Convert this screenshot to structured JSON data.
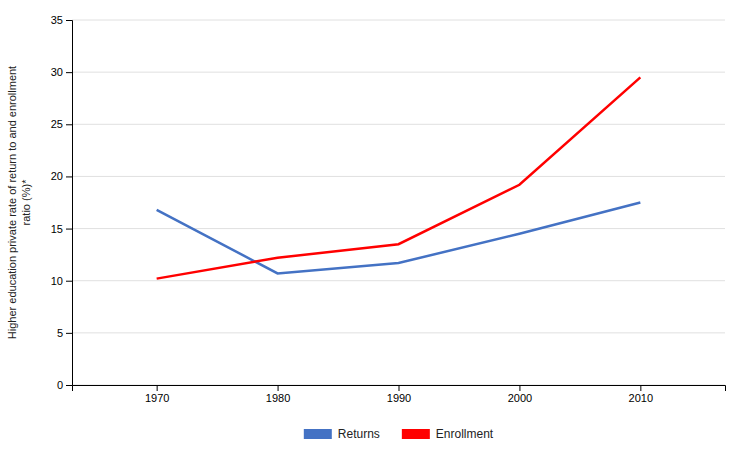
{
  "chart_data": {
    "type": "line",
    "ylabel": "Higher education private rate of return to and enrollment\nratio (%)*",
    "x": [
      1970,
      1980,
      1990,
      2000,
      2010
    ],
    "series": [
      {
        "name": "Returns",
        "color": "#4472C4",
        "values": [
          16.8,
          10.7,
          11.7,
          14.5,
          17.5
        ]
      },
      {
        "name": "Enrollment",
        "color": "#FF0000",
        "values": [
          10.2,
          12.2,
          13.5,
          19.2,
          29.5
        ]
      }
    ],
    "xlim": [
      1963,
      2017
    ],
    "xticks": [
      1970,
      1980,
      1990,
      2000,
      2010
    ],
    "ylim": [
      0,
      35
    ],
    "yticks": [
      0,
      5,
      10,
      15,
      20,
      25,
      30,
      35
    ],
    "grid": true,
    "legend": "bottom"
  }
}
